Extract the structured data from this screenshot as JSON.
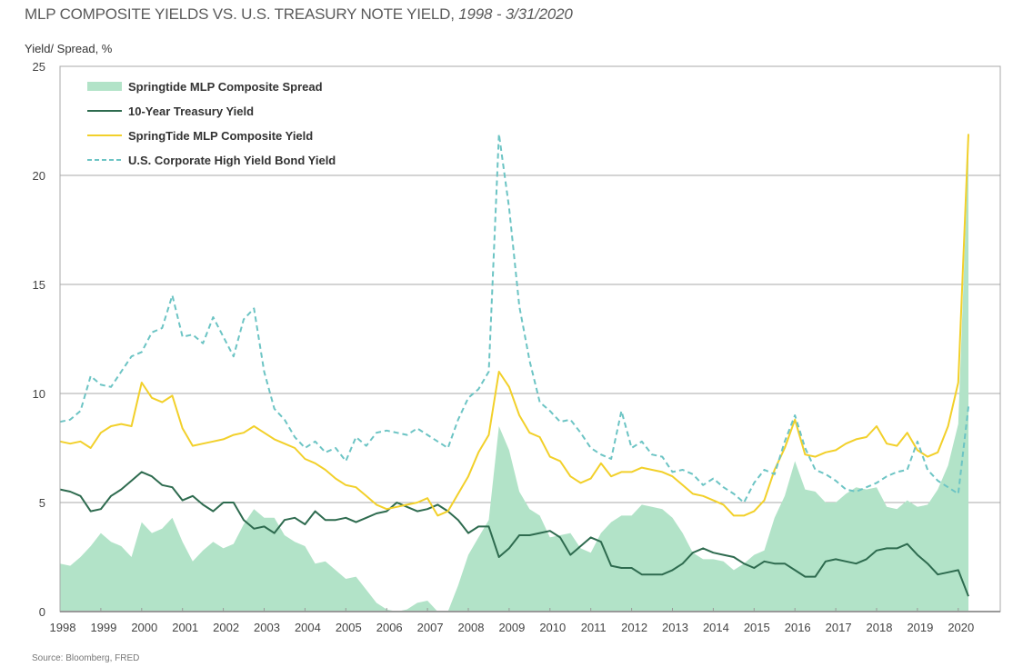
{
  "title": {
    "main": "MLP COMPOSITE YIELDS VS. U.S. TREASURY NOTE YIELD, ",
    "range": "1998 - 3/31/2020"
  },
  "source": "Source: Bloomberg, FRED",
  "colors": {
    "spread": "#b2e3c8",
    "treasury": "#2e6b4f",
    "mlp": "#f2d02a",
    "hy": "#6cc4c4",
    "grid": "#a8a8a8"
  },
  "chart_data": {
    "type": "line",
    "title": "MLP COMPOSITE YIELDS VS. U.S. TREASURY NOTE YIELD, 1998 - 3/31/2020",
    "xlabel": "",
    "ylabel": "Yield/ Spread, %",
    "ylim": [
      0,
      25
    ],
    "xlim": [
      1998,
      2021
    ],
    "yticks": [
      0,
      5,
      10,
      15,
      20,
      25
    ],
    "xticks": [
      "1998",
      "1999",
      "2000",
      "2001",
      "2002",
      "2003",
      "2004",
      "2005",
      "2006",
      "2007",
      "2008",
      "2009",
      "2010",
      "2011",
      "2012",
      "2013",
      "2014",
      "2015",
      "2016",
      "2017",
      "2018",
      "2019",
      "2020"
    ],
    "grid": "horizontal",
    "legend_position": "top-left",
    "x_start": 1998.0,
    "x_step": 0.25,
    "series": [
      {
        "name": "Springtide MLP Composite Spread",
        "style": "area",
        "values": [
          2.2,
          2.1,
          2.5,
          3.0,
          3.6,
          3.2,
          3.0,
          2.5,
          4.1,
          3.6,
          3.8,
          4.3,
          3.2,
          2.3,
          2.8,
          3.2,
          2.9,
          3.1,
          4.0,
          4.7,
          4.3,
          4.3,
          3.5,
          3.2,
          3.0,
          2.2,
          2.3,
          1.9,
          1.5,
          1.6,
          1.0,
          0.4,
          0.1,
          -0.2,
          0.1,
          0.4,
          0.5,
          -0.5,
          0.0,
          1.2,
          2.6,
          3.4,
          4.2,
          8.5,
          7.4,
          5.5,
          4.7,
          4.4,
          3.4,
          3.5,
          3.6,
          2.9,
          2.7,
          3.6,
          4.1,
          4.4,
          4.4,
          4.9,
          4.8,
          4.7,
          4.3,
          3.6,
          2.7,
          2.4,
          2.4,
          2.3,
          1.9,
          2.2,
          2.6,
          2.8,
          4.3,
          5.3,
          6.9,
          5.6,
          5.5,
          5.0,
          5.0,
          5.4,
          5.7,
          5.6,
          5.7,
          4.8,
          4.7,
          5.1,
          4.8,
          4.9,
          5.6,
          6.7,
          8.6,
          21.2
        ]
      },
      {
        "name": "10-Year Treasury Yield",
        "style": "solid",
        "values": [
          5.6,
          5.5,
          5.3,
          4.6,
          4.7,
          5.3,
          5.6,
          6.0,
          6.4,
          6.2,
          5.8,
          5.7,
          5.1,
          5.3,
          4.9,
          4.6,
          5.0,
          5.0,
          4.2,
          3.8,
          3.9,
          3.6,
          4.2,
          4.3,
          4.0,
          4.6,
          4.2,
          4.2,
          4.3,
          4.1,
          4.3,
          4.5,
          4.6,
          5.0,
          4.8,
          4.6,
          4.7,
          4.9,
          4.6,
          4.2,
          3.6,
          3.9,
          3.9,
          2.5,
          2.9,
          3.5,
          3.5,
          3.6,
          3.7,
          3.4,
          2.6,
          3.0,
          3.4,
          3.2,
          2.1,
          2.0,
          2.0,
          1.7,
          1.7,
          1.7,
          1.9,
          2.2,
          2.7,
          2.9,
          2.7,
          2.6,
          2.5,
          2.2,
          2.0,
          2.3,
          2.2,
          2.2,
          1.9,
          1.6,
          1.6,
          2.3,
          2.4,
          2.3,
          2.2,
          2.4,
          2.8,
          2.9,
          2.9,
          3.1,
          2.6,
          2.2,
          1.7,
          1.8,
          1.9,
          0.7
        ]
      },
      {
        "name": "SpringTide MLP Composite Yield",
        "style": "solid",
        "values": [
          7.8,
          7.7,
          7.8,
          7.5,
          8.2,
          8.5,
          8.6,
          8.5,
          10.5,
          9.8,
          9.6,
          9.9,
          8.4,
          7.6,
          7.7,
          7.8,
          7.9,
          8.1,
          8.2,
          8.5,
          8.2,
          7.9,
          7.7,
          7.5,
          7.0,
          6.8,
          6.5,
          6.1,
          5.8,
          5.7,
          5.3,
          4.9,
          4.7,
          4.8,
          4.9,
          5.0,
          5.2,
          4.4,
          4.6,
          5.4,
          6.2,
          7.3,
          8.1,
          11.0,
          10.3,
          9.0,
          8.2,
          8.0,
          7.1,
          6.9,
          6.2,
          5.9,
          6.1,
          6.8,
          6.2,
          6.4,
          6.4,
          6.6,
          6.5,
          6.4,
          6.2,
          5.8,
          5.4,
          5.3,
          5.1,
          4.9,
          4.4,
          4.4,
          4.6,
          5.1,
          6.5,
          7.5,
          8.8,
          7.2,
          7.1,
          7.3,
          7.4,
          7.7,
          7.9,
          8.0,
          8.5,
          7.7,
          7.6,
          8.2,
          7.4,
          7.1,
          7.3,
          8.5,
          10.5,
          21.9
        ]
      },
      {
        "name": "U.S. Corporate High Yield Bond Yield",
        "style": "dashed",
        "values": [
          8.7,
          8.8,
          9.2,
          10.8,
          10.4,
          10.3,
          11.0,
          11.7,
          11.9,
          12.8,
          13.0,
          14.5,
          12.6,
          12.7,
          12.3,
          13.5,
          12.6,
          11.7,
          13.4,
          13.9,
          11.0,
          9.3,
          8.8,
          8.0,
          7.5,
          7.8,
          7.3,
          7.5,
          6.9,
          8.0,
          7.6,
          8.2,
          8.3,
          8.2,
          8.1,
          8.4,
          8.1,
          7.8,
          7.5,
          8.8,
          9.8,
          10.2,
          11.0,
          21.9,
          18.5,
          14.0,
          11.5,
          9.6,
          9.2,
          8.7,
          8.8,
          8.2,
          7.5,
          7.2,
          7.0,
          9.2,
          7.5,
          7.8,
          7.2,
          7.1,
          6.4,
          6.5,
          6.3,
          5.8,
          6.1,
          5.7,
          5.4,
          5.0,
          5.9,
          6.5,
          6.3,
          7.8,
          9.0,
          7.5,
          6.5,
          6.3,
          6.0,
          5.6,
          5.5,
          5.7,
          5.9,
          6.2,
          6.4,
          6.5,
          7.8,
          6.5,
          6.0,
          5.7,
          5.4,
          9.4
        ]
      }
    ]
  }
}
